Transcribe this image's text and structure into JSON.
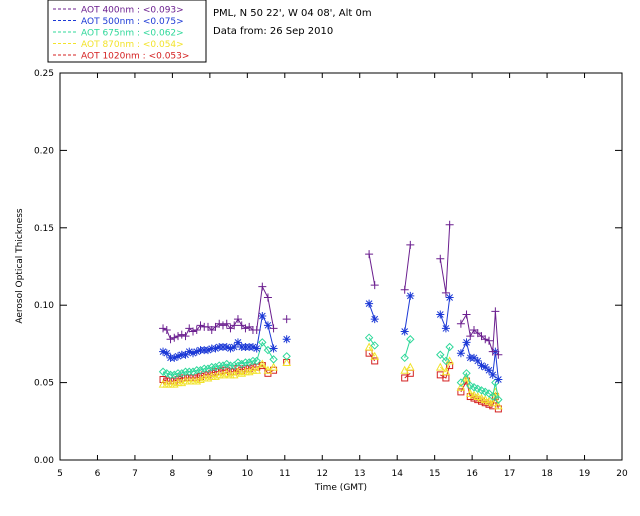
{
  "header": {
    "station": "PML, N 50 22', W 04 08', Alt 0m",
    "date_line": "Data from: 26 Sep 2010"
  },
  "chart_data": {
    "type": "line",
    "xlabel": "Time (GMT)",
    "ylabel": "Aerosol Optical Thickness",
    "xlim": [
      5,
      20
    ],
    "ylim": [
      0,
      0.25
    ],
    "x_ticks": [
      5,
      6,
      7,
      8,
      9,
      10,
      11,
      12,
      13,
      14,
      15,
      16,
      17,
      18,
      19,
      20
    ],
    "y_ticks": [
      "0.00",
      "0.05",
      "0.10",
      "0.15",
      "0.20",
      "0.25"
    ],
    "legend_position": "top-left-outside",
    "series": [
      {
        "name": "AOT  400nm : <0.093>",
        "color": "#6b1f8f",
        "marker": "plus",
        "segments": [
          [
            [
              7.75,
              0.085
            ],
            [
              7.85,
              0.084
            ],
            [
              7.95,
              0.078
            ],
            [
              8.05,
              0.079
            ],
            [
              8.15,
              0.08
            ],
            [
              8.25,
              0.081
            ],
            [
              8.35,
              0.08
            ],
            [
              8.45,
              0.085
            ],
            [
              8.55,
              0.083
            ],
            [
              8.65,
              0.084
            ],
            [
              8.75,
              0.087
            ],
            [
              8.85,
              0.086
            ],
            [
              8.95,
              0.086
            ],
            [
              9.05,
              0.084
            ],
            [
              9.15,
              0.086
            ],
            [
              9.25,
              0.088
            ],
            [
              9.35,
              0.087
            ],
            [
              9.45,
              0.088
            ],
            [
              9.55,
              0.085
            ],
            [
              9.65,
              0.087
            ],
            [
              9.75,
              0.091
            ],
            [
              9.85,
              0.087
            ],
            [
              9.95,
              0.085
            ],
            [
              10.05,
              0.086
            ],
            [
              10.15,
              0.084
            ],
            [
              10.25,
              0.084
            ],
            [
              10.4,
              0.112
            ],
            [
              10.55,
              0.105
            ],
            [
              10.7,
              0.085
            ]
          ],
          [
            [
              11.05,
              0.091
            ]
          ],
          [
            [
              13.25,
              0.133
            ],
            [
              13.4,
              0.113
            ]
          ],
          [
            [
              14.2,
              0.11
            ],
            [
              14.35,
              0.139
            ]
          ],
          [
            [
              15.15,
              0.13
            ],
            [
              15.3,
              0.108
            ],
            [
              15.4,
              0.152
            ]
          ],
          [
            [
              15.7,
              0.088
            ],
            [
              15.85,
              0.094
            ],
            [
              15.95,
              0.08
            ],
            [
              16.05,
              0.084
            ],
            [
              16.15,
              0.082
            ],
            [
              16.25,
              0.08
            ],
            [
              16.35,
              0.078
            ],
            [
              16.45,
              0.077
            ],
            [
              16.55,
              0.07
            ],
            [
              16.62,
              0.096
            ],
            [
              16.7,
              0.068
            ]
          ]
        ]
      },
      {
        "name": "AOT  500nm : <0.075>",
        "color": "#1c39d6",
        "marker": "asterisk",
        "segments": [
          [
            [
              7.75,
              0.07
            ],
            [
              7.85,
              0.069
            ],
            [
              7.95,
              0.066
            ],
            [
              8.05,
              0.066
            ],
            [
              8.15,
              0.067
            ],
            [
              8.25,
              0.068
            ],
            [
              8.35,
              0.068
            ],
            [
              8.45,
              0.07
            ],
            [
              8.55,
              0.069
            ],
            [
              8.65,
              0.07
            ],
            [
              8.75,
              0.071
            ],
            [
              8.85,
              0.071
            ],
            [
              8.95,
              0.071
            ],
            [
              9.05,
              0.072
            ],
            [
              9.15,
              0.072
            ],
            [
              9.25,
              0.073
            ],
            [
              9.35,
              0.073
            ],
            [
              9.45,
              0.073
            ],
            [
              9.55,
              0.072
            ],
            [
              9.65,
              0.073
            ],
            [
              9.75,
              0.076
            ],
            [
              9.85,
              0.073
            ],
            [
              9.95,
              0.073
            ],
            [
              10.05,
              0.073
            ],
            [
              10.15,
              0.073
            ],
            [
              10.25,
              0.072
            ],
            [
              10.4,
              0.093
            ],
            [
              10.55,
              0.087
            ],
            [
              10.7,
              0.072
            ]
          ],
          [
            [
              11.05,
              0.078
            ]
          ],
          [
            [
              13.25,
              0.101
            ],
            [
              13.4,
              0.091
            ]
          ],
          [
            [
              14.2,
              0.083
            ],
            [
              14.35,
              0.106
            ]
          ],
          [
            [
              15.15,
              0.094
            ],
            [
              15.3,
              0.085
            ],
            [
              15.4,
              0.105
            ]
          ],
          [
            [
              15.7,
              0.069
            ],
            [
              15.85,
              0.076
            ],
            [
              15.95,
              0.066
            ],
            [
              16.05,
              0.066
            ],
            [
              16.15,
              0.064
            ],
            [
              16.25,
              0.061
            ],
            [
              16.35,
              0.06
            ],
            [
              16.45,
              0.058
            ],
            [
              16.55,
              0.055
            ],
            [
              16.62,
              0.07
            ],
            [
              16.7,
              0.052
            ]
          ]
        ]
      },
      {
        "name": "AOT  675nm : <0.062>",
        "color": "#2fd89a",
        "marker": "diamond",
        "segments": [
          [
            [
              7.75,
              0.057
            ],
            [
              7.85,
              0.056
            ],
            [
              7.95,
              0.055
            ],
            [
              8.05,
              0.055
            ],
            [
              8.15,
              0.056
            ],
            [
              8.25,
              0.056
            ],
            [
              8.35,
              0.057
            ],
            [
              8.45,
              0.057
            ],
            [
              8.55,
              0.057
            ],
            [
              8.65,
              0.058
            ],
            [
              8.75,
              0.058
            ],
            [
              8.85,
              0.059
            ],
            [
              8.95,
              0.059
            ],
            [
              9.05,
              0.06
            ],
            [
              9.15,
              0.06
            ],
            [
              9.25,
              0.061
            ],
            [
              9.35,
              0.061
            ],
            [
              9.45,
              0.062
            ],
            [
              9.55,
              0.061
            ],
            [
              9.65,
              0.061
            ],
            [
              9.75,
              0.063
            ],
            [
              9.85,
              0.062
            ],
            [
              9.95,
              0.063
            ],
            [
              10.05,
              0.063
            ],
            [
              10.15,
              0.064
            ],
            [
              10.25,
              0.064
            ],
            [
              10.4,
              0.076
            ],
            [
              10.55,
              0.071
            ],
            [
              10.7,
              0.065
            ]
          ],
          [
            [
              11.05,
              0.067
            ]
          ],
          [
            [
              13.25,
              0.079
            ],
            [
              13.4,
              0.074
            ]
          ],
          [
            [
              14.2,
              0.066
            ],
            [
              14.35,
              0.078
            ]
          ],
          [
            [
              15.15,
              0.068
            ],
            [
              15.3,
              0.064
            ],
            [
              15.4,
              0.073
            ]
          ],
          [
            [
              15.7,
              0.05
            ],
            [
              15.85,
              0.056
            ],
            [
              15.95,
              0.048
            ],
            [
              16.05,
              0.047
            ],
            [
              16.15,
              0.046
            ],
            [
              16.25,
              0.045
            ],
            [
              16.35,
              0.044
            ],
            [
              16.45,
              0.043
            ],
            [
              16.55,
              0.041
            ],
            [
              16.62,
              0.05
            ],
            [
              16.7,
              0.039
            ]
          ]
        ]
      },
      {
        "name": "AOT  870nm : <0.054>",
        "color": "#f2e32b",
        "marker": "triangle",
        "segments": [
          [
            [
              7.75,
              0.049
            ],
            [
              7.85,
              0.049
            ],
            [
              7.95,
              0.049
            ],
            [
              8.05,
              0.049
            ],
            [
              8.15,
              0.05
            ],
            [
              8.25,
              0.05
            ],
            [
              8.35,
              0.051
            ],
            [
              8.45,
              0.051
            ],
            [
              8.55,
              0.051
            ],
            [
              8.65,
              0.051
            ],
            [
              8.75,
              0.052
            ],
            [
              8.85,
              0.053
            ],
            [
              8.95,
              0.053
            ],
            [
              9.05,
              0.054
            ],
            [
              9.15,
              0.054
            ],
            [
              9.25,
              0.055
            ],
            [
              9.35,
              0.055
            ],
            [
              9.45,
              0.056
            ],
            [
              9.55,
              0.055
            ],
            [
              9.65,
              0.055
            ],
            [
              9.75,
              0.057
            ],
            [
              9.85,
              0.056
            ],
            [
              9.95,
              0.057
            ],
            [
              10.05,
              0.057
            ],
            [
              10.15,
              0.058
            ],
            [
              10.25,
              0.058
            ],
            [
              10.4,
              0.062
            ],
            [
              10.55,
              0.058
            ],
            [
              10.7,
              0.06
            ]
          ],
          [
            [
              11.05,
              0.063
            ]
          ],
          [
            [
              13.25,
              0.073
            ],
            [
              13.4,
              0.067
            ]
          ],
          [
            [
              14.2,
              0.058
            ],
            [
              14.35,
              0.06
            ]
          ],
          [
            [
              15.15,
              0.06
            ],
            [
              15.3,
              0.057
            ],
            [
              15.4,
              0.064
            ]
          ],
          [
            [
              15.7,
              0.047
            ],
            [
              15.85,
              0.053
            ],
            [
              15.95,
              0.043
            ],
            [
              16.05,
              0.042
            ],
            [
              16.15,
              0.041
            ],
            [
              16.25,
              0.04
            ],
            [
              16.35,
              0.039
            ],
            [
              16.45,
              0.038
            ],
            [
              16.55,
              0.037
            ],
            [
              16.62,
              0.044
            ],
            [
              16.7,
              0.035
            ]
          ]
        ]
      },
      {
        "name": "AOT 1020nm : <0.053>",
        "color": "#d42020",
        "marker": "square",
        "segments": [
          [
            [
              7.75,
              0.052
            ],
            [
              7.85,
              0.051
            ],
            [
              7.95,
              0.051
            ],
            [
              8.05,
              0.051
            ],
            [
              8.15,
              0.052
            ],
            [
              8.25,
              0.053
            ],
            [
              8.35,
              0.053
            ],
            [
              8.45,
              0.053
            ],
            [
              8.55,
              0.053
            ],
            [
              8.65,
              0.053
            ],
            [
              8.75,
              0.054
            ],
            [
              8.85,
              0.055
            ],
            [
              8.95,
              0.055
            ],
            [
              9.05,
              0.056
            ],
            [
              9.15,
              0.057
            ],
            [
              9.25,
              0.057
            ],
            [
              9.35,
              0.058
            ],
            [
              9.45,
              0.058
            ],
            [
              9.55,
              0.057
            ],
            [
              9.65,
              0.057
            ],
            [
              9.75,
              0.059
            ],
            [
              9.85,
              0.058
            ],
            [
              9.95,
              0.059
            ],
            [
              10.05,
              0.059
            ],
            [
              10.15,
              0.06
            ],
            [
              10.25,
              0.06
            ],
            [
              10.4,
              0.061
            ],
            [
              10.55,
              0.056
            ],
            [
              10.7,
              0.058
            ]
          ],
          [
            [
              11.05,
              0.063
            ]
          ],
          [
            [
              13.25,
              0.069
            ],
            [
              13.4,
              0.064
            ]
          ],
          [
            [
              14.2,
              0.053
            ],
            [
              14.35,
              0.056
            ]
          ],
          [
            [
              15.15,
              0.055
            ],
            [
              15.3,
              0.053
            ],
            [
              15.4,
              0.061
            ]
          ],
          [
            [
              15.7,
              0.044
            ],
            [
              15.85,
              0.051
            ],
            [
              15.95,
              0.041
            ],
            [
              16.05,
              0.04
            ],
            [
              16.15,
              0.039
            ],
            [
              16.25,
              0.038
            ],
            [
              16.35,
              0.037
            ],
            [
              16.45,
              0.036
            ],
            [
              16.55,
              0.035
            ],
            [
              16.62,
              0.041
            ],
            [
              16.7,
              0.033
            ]
          ]
        ]
      }
    ]
  }
}
